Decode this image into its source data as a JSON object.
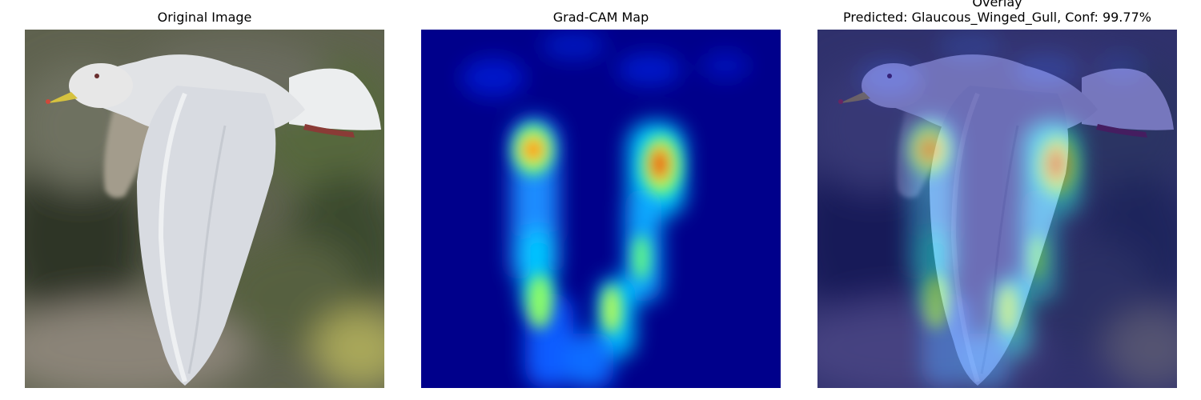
{
  "panels": [
    {
      "title": "Original Image",
      "content": "photo of a gull in flight"
    },
    {
      "title": "Grad-CAM Map",
      "content": "heatmap",
      "colormap": "jet"
    },
    {
      "title_lines": [
        "Overlay",
        "Predicted: Glaucous_Winged_Gull, Conf: 99.77%"
      ],
      "content": "photo with heatmap overlay"
    }
  ],
  "colors": {
    "heatmap_low": "#00008b",
    "heatmap_mid": "#00e5ff",
    "heatmap_high": "#ff2a00",
    "background": "#ffffff"
  }
}
